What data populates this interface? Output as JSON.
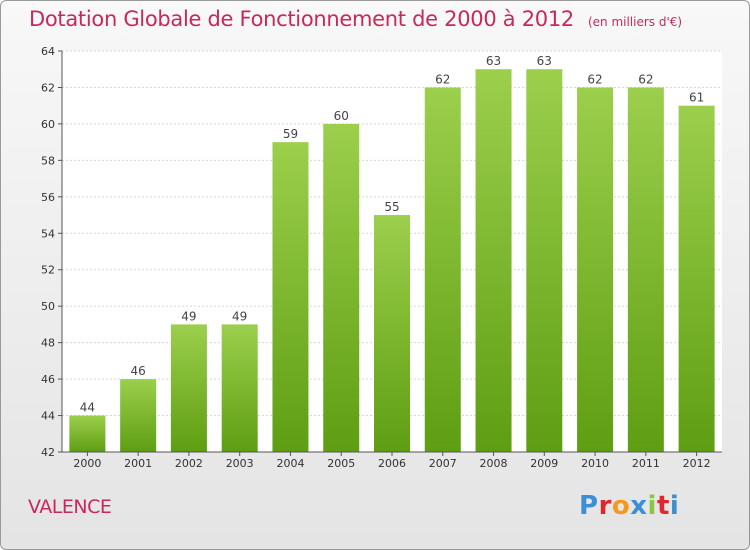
{
  "header": {
    "title": "Dotation Globale de Fonctionnement de 2000 à 2012",
    "unit": "(en milliers d'€)"
  },
  "footer": {
    "city": "VALENCE",
    "logo": "Proxiti"
  },
  "colors": {
    "accent": "#c8295a",
    "bar_top": "#9ccf4c",
    "bar_bottom": "#5e9e12",
    "logo_letters": [
      "#3a8fd6",
      "#e0262f",
      "#f29a1d",
      "#3a8fd6",
      "#8cc63f",
      "#e0262f",
      "#3a8fd6"
    ]
  },
  "chart_data": {
    "type": "bar",
    "title": "Dotation Globale de Fonctionnement de 2000 à 2012",
    "subtitle": "(en milliers d'€)",
    "xlabel": "",
    "ylabel": "",
    "categories": [
      "2000",
      "2001",
      "2002",
      "2003",
      "2004",
      "2005",
      "2006",
      "2007",
      "2008",
      "2009",
      "2010",
      "2011",
      "2012"
    ],
    "values": [
      44,
      46,
      49,
      49,
      59,
      60,
      55,
      62,
      63,
      63,
      62,
      62,
      61
    ],
    "ylim": [
      42,
      64
    ],
    "yticks": [
      42,
      44,
      46,
      48,
      50,
      52,
      54,
      56,
      58,
      60,
      62,
      64
    ],
    "grid": true,
    "legend": "none"
  }
}
